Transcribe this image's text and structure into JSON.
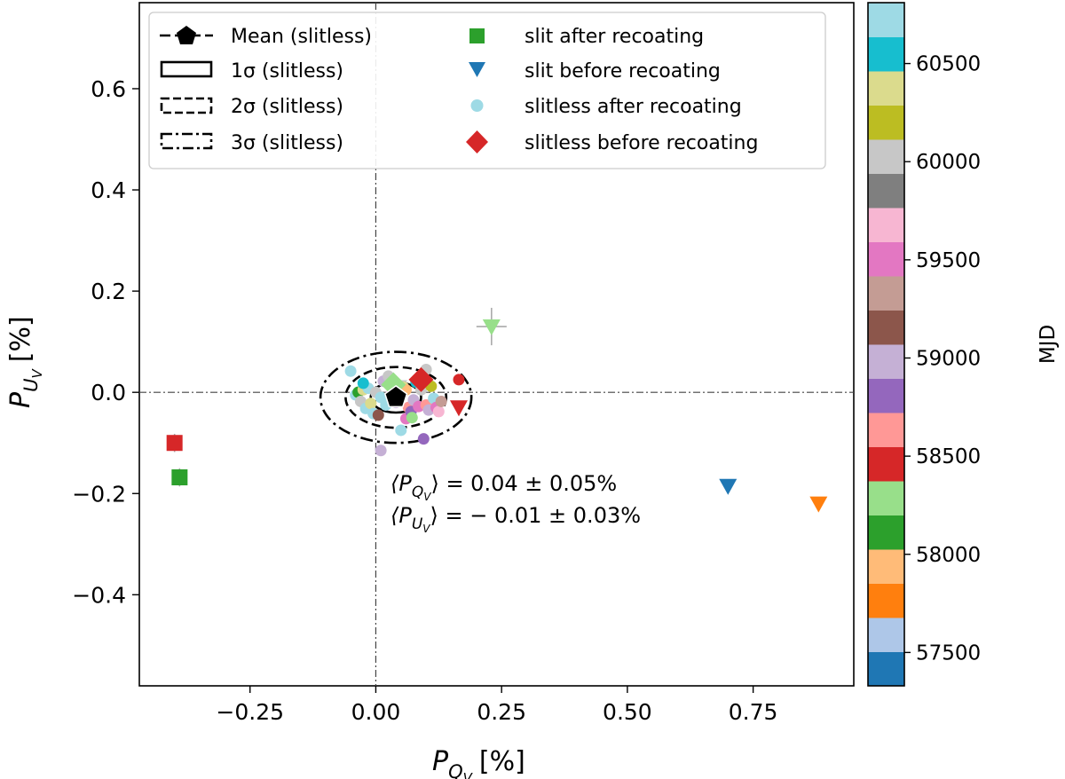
{
  "chart_data": {
    "type": "scatter",
    "xlabel": "P",
    "xlabel_sub": "Q",
    "xlabel_subsub": "V",
    "xlabel_unit": "[%]",
    "ylabel": "P",
    "ylabel_sub": "U",
    "ylabel_subsub": "V",
    "ylabel_unit": "[%]",
    "xlim": [
      -0.47,
      0.95
    ],
    "ylim": [
      -0.58,
      0.77
    ],
    "xticks": [
      -0.25,
      0.0,
      0.25,
      0.5,
      0.75
    ],
    "xtick_labels": [
      "−0.25",
      "0.00",
      "0.25",
      "0.50",
      "0.75"
    ],
    "yticks": [
      -0.4,
      -0.2,
      0.0,
      0.2,
      0.4,
      0.6
    ],
    "ytick_labels": [
      "−0.4",
      "−0.2",
      "0.0",
      "0.2",
      "0.4",
      "0.6"
    ],
    "zero_lines": true,
    "legend": {
      "placement": "top-left",
      "entries": [
        {
          "label": "Mean (slitless)",
          "marker": "pentagon-line",
          "color": "#000000"
        },
        {
          "label": "1σ (slitless)",
          "marker": "box-solid",
          "color": "#000000"
        },
        {
          "label": "2σ (slitless)",
          "marker": "box-dashed",
          "color": "#000000"
        },
        {
          "label": "3σ (slitless)",
          "marker": "box-dashdot",
          "color": "#000000"
        },
        {
          "label": "slit after recoating",
          "marker": "square",
          "color": "#2ca02c"
        },
        {
          "label": "slit before recoating",
          "marker": "triangle-down",
          "color": "#1f77b4"
        },
        {
          "label": "slitless after recoating",
          "marker": "circle",
          "color": "#9edae5"
        },
        {
          "label": "slitless before recoating",
          "marker": "diamond",
          "color": "#d62728"
        }
      ]
    },
    "mean": {
      "x": 0.04,
      "y": -0.01
    },
    "sigma": {
      "sx": 0.05,
      "sy": 0.03
    },
    "annotation": {
      "line1_pre": "⟨P",
      "line1_post": "⟩ = 0.04 ± 0.05%",
      "line2_pre": "⟨P",
      "line2_post": "⟩ = − 0.01 ± 0.03%",
      "sub_q": "Q",
      "sub_u": "U",
      "subsub": "V"
    },
    "colorbar": {
      "label": "MJD",
      "range": [
        57330,
        60810
      ],
      "ticks": [
        57500,
        58000,
        58500,
        59000,
        59500,
        60000,
        60500
      ],
      "tick_labels": [
        "57500",
        "58000",
        "58500",
        "59000",
        "59500",
        "60000",
        "60500"
      ],
      "colors": [
        "#1f77b4",
        "#aec7e8",
        "#ff7f0e",
        "#ffbb78",
        "#2ca02c",
        "#98df8a",
        "#d62728",
        "#ff9896",
        "#9467bd",
        "#c5b0d5",
        "#8c564b",
        "#c49c94",
        "#e377c2",
        "#f7b6d2",
        "#7f7f7f",
        "#c7c7c7",
        "#bcbd22",
        "#dbdb8d",
        "#17becf",
        "#9edae5"
      ]
    },
    "series": [
      {
        "name": "slit after recoating",
        "marker": "square",
        "points": [
          {
            "x": -0.4,
            "y": -0.1,
            "color": "#d62728",
            "ex": 0.015,
            "ey": 0.018
          },
          {
            "x": -0.39,
            "y": -0.168,
            "color": "#2ca02c",
            "ex": 0.015,
            "ey": 0.018
          }
        ]
      },
      {
        "name": "slit before recoating",
        "marker": "triangle-down",
        "points": [
          {
            "x": 0.23,
            "y": 0.13,
            "color": "#98df8a",
            "ex": 0.03,
            "ey": 0.037
          },
          {
            "x": 0.7,
            "y": -0.185,
            "color": "#1f77b4",
            "ex": 0.008,
            "ey": 0.01
          },
          {
            "x": 0.88,
            "y": -0.22,
            "color": "#ff7f0e",
            "ex": 0.008,
            "ey": 0.01
          },
          {
            "x": 0.165,
            "y": -0.03,
            "color": "#d62728",
            "ex": 0.0,
            "ey": 0.0
          },
          {
            "x": 0.045,
            "y": 0.01,
            "color": "#c7c7c7",
            "ex": 0.0,
            "ey": 0.0
          }
        ]
      },
      {
        "name": "slitless after recoating",
        "marker": "circle",
        "points": [
          {
            "x": -0.05,
            "y": 0.042,
            "color": "#9edae5"
          },
          {
            "x": -0.04,
            "y": -0.005,
            "color": "#9edae5"
          },
          {
            "x": -0.035,
            "y": 0.0,
            "color": "#2ca02c"
          },
          {
            "x": -0.03,
            "y": -0.018,
            "color": "#c7c7c7"
          },
          {
            "x": -0.025,
            "y": 0.005,
            "color": "#dbdb8d"
          },
          {
            "x": -0.02,
            "y": -0.032,
            "color": "#9edae5"
          },
          {
            "x": -0.015,
            "y": 0.008,
            "color": "#9edae5"
          },
          {
            "x": -0.01,
            "y": -0.022,
            "color": "#dbdb8d"
          },
          {
            "x": -0.025,
            "y": 0.018,
            "color": "#17becf"
          },
          {
            "x": -0.005,
            "y": -0.042,
            "color": "#9edae5"
          },
          {
            "x": 0.0,
            "y": 0.0,
            "color": "#c7c7c7"
          },
          {
            "x": 0.005,
            "y": -0.045,
            "color": "#8c564b"
          },
          {
            "x": 0.01,
            "y": -0.01,
            "color": "#9edae5"
          },
          {
            "x": 0.015,
            "y": 0.022,
            "color": "#c5b0d5"
          },
          {
            "x": 0.02,
            "y": -0.025,
            "color": "#9edae5"
          },
          {
            "x": 0.025,
            "y": 0.032,
            "color": "#c7c7c7"
          },
          {
            "x": 0.03,
            "y": -0.005,
            "color": "#f7b6d2"
          },
          {
            "x": 0.035,
            "y": 0.015,
            "color": "#98df8a"
          },
          {
            "x": 0.04,
            "y": -0.02,
            "color": "#c5b0d5"
          },
          {
            "x": 0.05,
            "y": -0.075,
            "color": "#9edae5"
          },
          {
            "x": 0.055,
            "y": 0.01,
            "color": "#dbdb8d"
          },
          {
            "x": 0.06,
            "y": -0.052,
            "color": "#e377c2"
          },
          {
            "x": 0.065,
            "y": -0.03,
            "color": "#ff9896"
          },
          {
            "x": 0.07,
            "y": -0.038,
            "color": "#9467bd"
          },
          {
            "x": 0.072,
            "y": -0.05,
            "color": "#98df8a"
          },
          {
            "x": 0.075,
            "y": -0.015,
            "color": "#c5b0d5"
          },
          {
            "x": 0.08,
            "y": 0.02,
            "color": "#17becf"
          },
          {
            "x": 0.085,
            "y": -0.028,
            "color": "#e377c2"
          },
          {
            "x": 0.09,
            "y": 0.005,
            "color": "#c7c7c7"
          },
          {
            "x": 0.095,
            "y": -0.092,
            "color": "#9467bd"
          },
          {
            "x": 0.1,
            "y": -0.025,
            "color": "#ff9896"
          },
          {
            "x": 0.105,
            "y": -0.035,
            "color": "#c5b0d5"
          },
          {
            "x": 0.11,
            "y": 0.012,
            "color": "#bcbd22"
          },
          {
            "x": 0.115,
            "y": -0.012,
            "color": "#9edae5"
          },
          {
            "x": 0.12,
            "y": -0.03,
            "color": "#e377c2"
          },
          {
            "x": 0.125,
            "y": -0.038,
            "color": "#f7b6d2"
          },
          {
            "x": 0.13,
            "y": -0.018,
            "color": "#c49c94"
          },
          {
            "x": 0.1,
            "y": 0.045,
            "color": "#c7c7c7"
          },
          {
            "x": 0.165,
            "y": 0.025,
            "color": "#d62728"
          },
          {
            "x": 0.01,
            "y": -0.115,
            "color": "#c5b0d5"
          },
          {
            "x": 0.06,
            "y": 0.005,
            "color": "#ffbb78"
          }
        ]
      },
      {
        "name": "slitless before recoating",
        "marker": "diamond",
        "points": [
          {
            "x": 0.09,
            "y": 0.025,
            "color": "#d62728"
          },
          {
            "x": 0.035,
            "y": 0.015,
            "color": "#98df8a"
          }
        ]
      }
    ]
  }
}
